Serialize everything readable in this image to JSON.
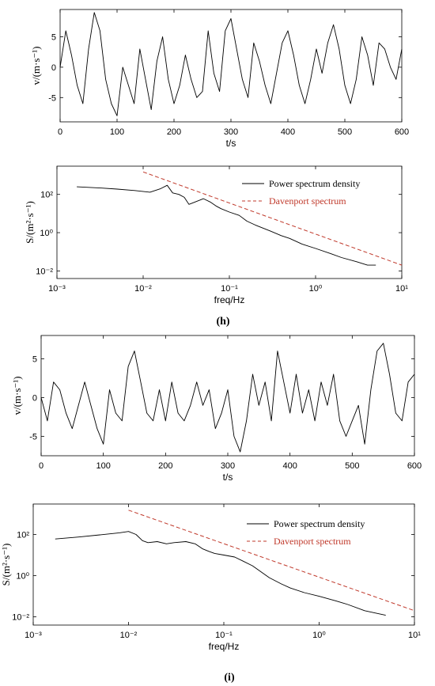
{
  "panels": [
    {
      "label": "(h)"
    },
    {
      "label": "(i)"
    }
  ],
  "chart_data": [
    {
      "type": "line",
      "panel": "(h)",
      "xlabel": "t/s",
      "ylabel": "v/(m·s⁻¹)",
      "xlim": [
        0,
        600
      ],
      "ylim": [
        -9,
        9.5
      ],
      "xticks": [
        0,
        100,
        200,
        300,
        400,
        500,
        600
      ],
      "yticks": [
        -5,
        0,
        5
      ],
      "grid": false,
      "series": [
        {
          "color": "#000000",
          "x": [
            0,
            10,
            20,
            30,
            40,
            50,
            60,
            70,
            80,
            90,
            100,
            110,
            120,
            130,
            140,
            150,
            160,
            170,
            180,
            190,
            200,
            210,
            220,
            230,
            240,
            250,
            260,
            270,
            280,
            290,
            300,
            310,
            320,
            330,
            340,
            350,
            360,
            370,
            380,
            390,
            400,
            410,
            420,
            430,
            440,
            450,
            460,
            470,
            480,
            490,
            500,
            510,
            520,
            530,
            540,
            550,
            560,
            570,
            580,
            590,
            600
          ],
          "y": [
            0,
            6,
            2,
            -3,
            -6,
            3,
            9,
            6,
            -2,
            -6,
            -8,
            0,
            -3,
            -6,
            3,
            -2,
            -7,
            1,
            5,
            -2,
            -6,
            -3,
            2,
            -2,
            -5,
            -4,
            6,
            -1,
            -4,
            6,
            8,
            3,
            -2,
            -5,
            4,
            1,
            -3,
            -6,
            -1,
            4,
            6,
            2,
            -3,
            -6,
            -2,
            3,
            -1,
            4,
            7,
            3,
            -3,
            -6,
            -2,
            5,
            2,
            -3,
            4,
            3,
            0,
            -2,
            3
          ]
        }
      ]
    },
    {
      "type": "line",
      "panel": "(h)",
      "xlabel": "freq/Hz",
      "ylabel": "S/(m²·s⁻¹)",
      "xscale": "log",
      "yscale": "log",
      "xlim": [
        0.001,
        10
      ],
      "ylim": [
        0.004,
        3000
      ],
      "xticks": [
        0.001,
        0.01,
        0.1,
        1,
        10
      ],
      "xtick_labels": [
        "10⁻³",
        "10⁻²",
        "10⁻¹",
        "10⁰",
        "10¹"
      ],
      "yticks": [
        0.01,
        1,
        100
      ],
      "ytick_labels": [
        "10⁻²",
        "10⁰",
        "10²"
      ],
      "legend": "top-right",
      "series": [
        {
          "name": "Power spectrum density",
          "color": "#000000",
          "style": "solid",
          "x": [
            0.0017,
            0.003,
            0.005,
            0.008,
            0.012,
            0.016,
            0.019,
            0.022,
            0.026,
            0.03,
            0.034,
            0.04,
            0.05,
            0.06,
            0.07,
            0.08,
            0.1,
            0.13,
            0.16,
            0.2,
            0.3,
            0.4,
            0.5,
            0.7,
            1,
            1.5,
            2,
            3,
            4,
            5
          ],
          "y": [
            250,
            220,
            190,
            160,
            130,
            200,
            300,
            120,
            100,
            70,
            30,
            40,
            60,
            40,
            25,
            18,
            12,
            8,
            4,
            2.5,
            1.2,
            0.7,
            0.5,
            0.25,
            0.15,
            0.08,
            0.05,
            0.03,
            0.02,
            0.02
          ]
        },
        {
          "name": "Davenport spectrum",
          "color": "#c0392b",
          "style": "dashed",
          "x": [
            0.01,
            10
          ],
          "y": [
            1500,
            0.02
          ]
        }
      ]
    },
    {
      "type": "line",
      "panel": "(i)",
      "xlabel": "t/s",
      "ylabel": "v/(m·s⁻¹)",
      "xlim": [
        0,
        600
      ],
      "ylim": [
        -7.5,
        8
      ],
      "xticks": [
        0,
        100,
        200,
        300,
        400,
        500,
        600
      ],
      "yticks": [
        -5,
        0,
        5
      ],
      "grid": false,
      "series": [
        {
          "color": "#000000",
          "x": [
            0,
            10,
            20,
            30,
            40,
            50,
            60,
            70,
            80,
            90,
            100,
            110,
            120,
            130,
            140,
            150,
            160,
            170,
            180,
            190,
            200,
            210,
            220,
            230,
            240,
            250,
            260,
            270,
            280,
            290,
            300,
            310,
            320,
            330,
            340,
            350,
            360,
            370,
            380,
            390,
            400,
            410,
            420,
            430,
            440,
            450,
            460,
            470,
            480,
            490,
            500,
            510,
            520,
            530,
            540,
            550,
            560,
            570,
            580,
            590,
            600
          ],
          "y": [
            0,
            -3,
            2,
            1,
            -2,
            -4,
            -1,
            2,
            -1,
            -4,
            -6,
            1,
            -2,
            -3,
            4,
            6,
            2,
            -2,
            -3,
            1,
            -3,
            2,
            -2,
            -3,
            -1,
            2,
            -1,
            1,
            -4,
            -2,
            1,
            -5,
            -7,
            -3,
            3,
            -1,
            2,
            -3,
            6,
            2,
            -2,
            3,
            -2,
            1,
            -3,
            2,
            -1,
            3,
            -3,
            -5,
            -3,
            -1,
            -6,
            1,
            6,
            7,
            3,
            -2,
            -3,
            2,
            3
          ]
        }
      ]
    },
    {
      "type": "line",
      "panel": "(i)",
      "xlabel": "freq/Hz",
      "ylabel": "S/(m²·s⁻¹)",
      "xscale": "log",
      "yscale": "log",
      "xlim": [
        0.001,
        10
      ],
      "ylim": [
        0.004,
        3000
      ],
      "xticks": [
        0.001,
        0.01,
        0.1,
        1,
        10
      ],
      "xtick_labels": [
        "10⁻³",
        "10⁻²",
        "10⁻¹",
        "10⁰",
        "10¹"
      ],
      "yticks": [
        0.01,
        1,
        100
      ],
      "ytick_labels": [
        "10⁻²",
        "10⁰",
        "10²"
      ],
      "legend": "top-right",
      "series": [
        {
          "name": "Power spectrum density",
          "color": "#000000",
          "style": "solid",
          "x": [
            0.0017,
            0.003,
            0.005,
            0.008,
            0.01,
            0.012,
            0.014,
            0.016,
            0.02,
            0.025,
            0.03,
            0.04,
            0.05,
            0.06,
            0.07,
            0.08,
            0.1,
            0.13,
            0.16,
            0.2,
            0.3,
            0.4,
            0.5,
            0.7,
            1,
            1.5,
            2,
            3,
            4,
            5
          ],
          "y": [
            60,
            75,
            95,
            120,
            140,
            100,
            50,
            40,
            45,
            35,
            40,
            45,
            35,
            20,
            15,
            12,
            10,
            8,
            5,
            3,
            0.8,
            0.4,
            0.25,
            0.15,
            0.1,
            0.06,
            0.04,
            0.02,
            0.015,
            0.012
          ]
        },
        {
          "name": "Davenport spectrum",
          "color": "#c0392b",
          "style": "dashed",
          "x": [
            0.01,
            10
          ],
          "y": [
            1500,
            0.02
          ]
        }
      ]
    }
  ]
}
